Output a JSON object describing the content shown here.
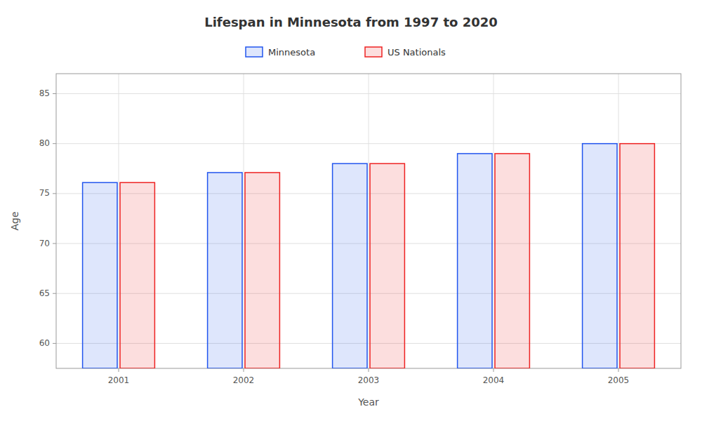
{
  "chart_data": {
    "type": "bar",
    "title": "Lifespan in Minnesota from 1997 to 2020",
    "xlabel": "Year",
    "ylabel": "Age",
    "categories": [
      "2001",
      "2002",
      "2003",
      "2004",
      "2005"
    ],
    "series": [
      {
        "name": "Minnesota",
        "color": "#2255ee",
        "values": [
          76.1,
          77.1,
          78.0,
          79.0,
          80.0
        ]
      },
      {
        "name": "US Nationals",
        "color": "#ee2222",
        "values": [
          76.1,
          77.1,
          78.0,
          79.0,
          80.0
        ]
      }
    ],
    "ylim": [
      57.5,
      87
    ],
    "yticks": [
      60,
      65,
      70,
      75,
      80,
      85
    ],
    "grid": true,
    "legend": "top"
  }
}
